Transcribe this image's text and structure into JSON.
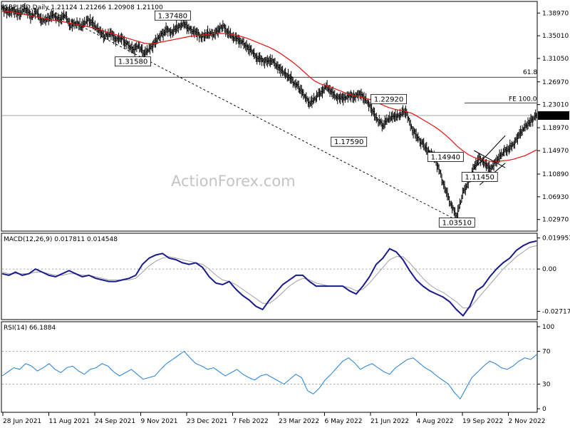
{
  "watermark": "ActionForex.com",
  "chart_data": [
    {
      "panel": "price",
      "type": "line",
      "title": "GBPUSD,Daily  1.21124 1.21266 1.20908 1.21100",
      "ylim": [
        1.0107,
        1.4087
      ],
      "yticks": [
        "1.38970",
        "1.35010",
        "1.31050",
        "1.26970",
        "1.23010",
        "1.18970",
        "1.14970",
        "1.10890",
        "1.06930",
        "1.02970"
      ],
      "last_price": "1.21100",
      "levels": [
        {
          "label": "61.8",
          "value": 1.2778
        },
        {
          "label": "FE 100.0",
          "value": 1.233
        }
      ],
      "price_series": [
        1.397,
        1.392,
        1.394,
        1.388,
        1.398,
        1.385,
        1.391,
        1.376,
        1.381,
        1.384,
        1.378,
        1.386,
        1.368,
        1.372,
        1.366,
        1.378,
        1.371,
        1.362,
        1.349,
        1.356,
        1.342,
        1.348,
        1.335,
        1.326,
        1.332,
        1.318,
        1.327,
        1.34,
        1.352,
        1.361,
        1.356,
        1.366,
        1.372,
        1.361,
        1.358,
        1.347,
        1.354,
        1.352,
        1.36,
        1.366,
        1.353,
        1.346,
        1.34,
        1.332,
        1.322,
        1.311,
        1.305,
        1.309,
        1.302,
        1.292,
        1.282,
        1.273,
        1.262,
        1.246,
        1.233,
        1.24,
        1.252,
        1.262,
        1.254,
        1.242,
        1.241,
        1.246,
        1.244,
        1.25,
        1.238,
        1.221,
        1.203,
        1.194,
        1.206,
        1.21,
        1.213,
        1.219,
        1.19,
        1.172,
        1.16,
        1.15,
        1.138,
        1.112,
        1.08,
        1.055,
        1.035,
        1.074,
        1.095,
        1.12,
        1.136,
        1.128,
        1.119,
        1.135,
        1.146,
        1.152,
        1.163,
        1.178,
        1.191,
        1.2,
        1.211
      ],
      "ma_series": [
        1.393,
        1.392,
        1.391,
        1.389,
        1.387,
        1.385,
        1.383,
        1.381,
        1.379,
        1.377,
        1.376,
        1.374,
        1.372,
        1.37,
        1.368,
        1.366,
        1.364,
        1.361,
        1.358,
        1.355,
        1.352,
        1.349,
        1.346,
        1.343,
        1.34,
        1.337,
        1.336,
        1.337,
        1.339,
        1.341,
        1.343,
        1.345,
        1.347,
        1.349,
        1.35,
        1.351,
        1.352,
        1.353,
        1.354,
        1.354,
        1.353,
        1.351,
        1.349,
        1.346,
        1.342,
        1.338,
        1.334,
        1.33,
        1.325,
        1.319,
        1.312,
        1.305,
        1.297,
        1.288,
        1.279,
        1.271,
        1.266,
        1.263,
        1.26,
        1.256,
        1.252,
        1.248,
        1.245,
        1.243,
        1.241,
        1.238,
        1.234,
        1.229,
        1.225,
        1.222,
        1.22,
        1.218,
        1.215,
        1.21,
        1.204,
        1.198,
        1.192,
        1.185,
        1.177,
        1.168,
        1.158,
        1.15,
        1.143,
        1.138,
        1.135,
        1.133,
        1.131,
        1.131,
        1.132,
        1.133,
        1.135,
        1.138,
        1.141,
        1.146,
        1.151
      ],
      "box_labels": [
        {
          "text": "1.37480",
          "i": 30,
          "v": 1.3748,
          "side": "above"
        },
        {
          "text": "1.31580",
          "i": 23,
          "v": 1.3158,
          "side": "below"
        },
        {
          "text": "1.22920",
          "i": 68,
          "v": 1.2292,
          "side": "above"
        },
        {
          "text": "1.17590",
          "i": 61,
          "v": 1.1759,
          "side": "below"
        },
        {
          "text": "1.14940",
          "i": 78,
          "v": 1.1494,
          "side": "below"
        },
        {
          "text": "1.11450",
          "i": 84,
          "v": 1.1145,
          "side": "below"
        },
        {
          "text": "1.03510",
          "i": 80,
          "v": 1.0351,
          "side": "below"
        }
      ]
    },
    {
      "panel": "macd",
      "type": "line",
      "title": "MACD(12,26,9) 0.017811 0.014548",
      "ylim": [
        -0.032,
        0.0225
      ],
      "yticks": [
        "0.019953",
        "0.00",
        "-0.02717"
      ],
      "macd_series": [
        -0.003,
        -0.004,
        -0.002,
        -0.004,
        -0.003,
        0.0,
        -0.002,
        -0.004,
        -0.005,
        -0.003,
        -0.001,
        -0.003,
        -0.005,
        -0.004,
        -0.006,
        -0.007,
        -0.008,
        -0.008,
        -0.007,
        -0.006,
        -0.004,
        0.003,
        0.007,
        0.009,
        0.01,
        0.007,
        0.006,
        0.004,
        0.003,
        0.004,
        0.001,
        -0.005,
        -0.009,
        -0.01,
        -0.008,
        -0.013,
        -0.017,
        -0.02,
        -0.024,
        -0.026,
        -0.02,
        -0.015,
        -0.01,
        -0.007,
        -0.004,
        -0.004,
        -0.008,
        -0.011,
        -0.011,
        -0.011,
        -0.011,
        -0.011,
        -0.014,
        -0.016,
        -0.011,
        -0.005,
        0.003,
        0.007,
        0.013,
        0.011,
        0.006,
        -0.001,
        -0.007,
        -0.011,
        -0.014,
        -0.016,
        -0.018,
        -0.021,
        -0.026,
        -0.03,
        -0.024,
        -0.014,
        -0.011,
        -0.005,
        0.0,
        0.004,
        0.007,
        0.012,
        0.015,
        0.017,
        0.018
      ],
      "signal_series": [
        -0.002,
        -0.003,
        -0.003,
        -0.003,
        -0.003,
        -0.002,
        -0.002,
        -0.003,
        -0.004,
        -0.004,
        -0.003,
        -0.003,
        -0.004,
        -0.004,
        -0.005,
        -0.006,
        -0.007,
        -0.007,
        -0.007,
        -0.007,
        -0.006,
        -0.002,
        0.002,
        0.005,
        0.007,
        0.008,
        0.007,
        0.006,
        0.005,
        0.004,
        0.003,
        0.0,
        -0.004,
        -0.007,
        -0.008,
        -0.01,
        -0.013,
        -0.016,
        -0.019,
        -0.022,
        -0.022,
        -0.019,
        -0.015,
        -0.011,
        -0.008,
        -0.006,
        -0.007,
        -0.009,
        -0.01,
        -0.011,
        -0.011,
        -0.011,
        -0.012,
        -0.014,
        -0.013,
        -0.009,
        -0.004,
        0.001,
        0.006,
        0.008,
        0.008,
        0.004,
        -0.001,
        -0.006,
        -0.01,
        -0.013,
        -0.015,
        -0.018,
        -0.021,
        -0.025,
        -0.025,
        -0.02,
        -0.015,
        -0.01,
        -0.005,
        0.0,
        0.004,
        0.008,
        0.011,
        0.014,
        0.015
      ]
    },
    {
      "panel": "rsi",
      "type": "line",
      "title": "RSI(14) 66.1884",
      "ylim": [
        0,
        100
      ],
      "yticks": [
        "100",
        "70",
        "30",
        "0"
      ],
      "levels": [
        70,
        30
      ],
      "rsi_series": [
        40,
        45,
        50,
        48,
        55,
        52,
        46,
        50,
        55,
        48,
        44,
        50,
        52,
        46,
        42,
        48,
        50,
        55,
        52,
        45,
        40,
        44,
        48,
        42,
        36,
        38,
        40,
        48,
        55,
        60,
        65,
        70,
        62,
        55,
        52,
        48,
        50,
        45,
        40,
        44,
        48,
        42,
        38,
        35,
        40,
        42,
        38,
        34,
        30,
        36,
        42,
        38,
        22,
        18,
        25,
        35,
        42,
        50,
        58,
        62,
        56,
        48,
        52,
        55,
        50,
        45,
        42,
        50,
        55,
        60,
        62,
        56,
        50,
        46,
        40,
        35,
        30,
        20,
        12,
        25,
        38,
        45,
        52,
        58,
        55,
        50,
        48,
        52,
        58,
        62,
        60,
        66
      ]
    },
    {
      "panel": "x-axis",
      "type": "line",
      "xlabels": [
        "28 Jun 2021",
        "11 Aug 2021",
        "24 Sep 2021",
        "9 Nov 2021",
        "23 Dec 2021",
        "7 Feb 2022",
        "23 Mar 2022",
        "6 May 2022",
        "21 Jun 2022",
        "4 Aug 2022",
        "19 Sep 2022",
        "2 Nov 2022"
      ]
    }
  ]
}
